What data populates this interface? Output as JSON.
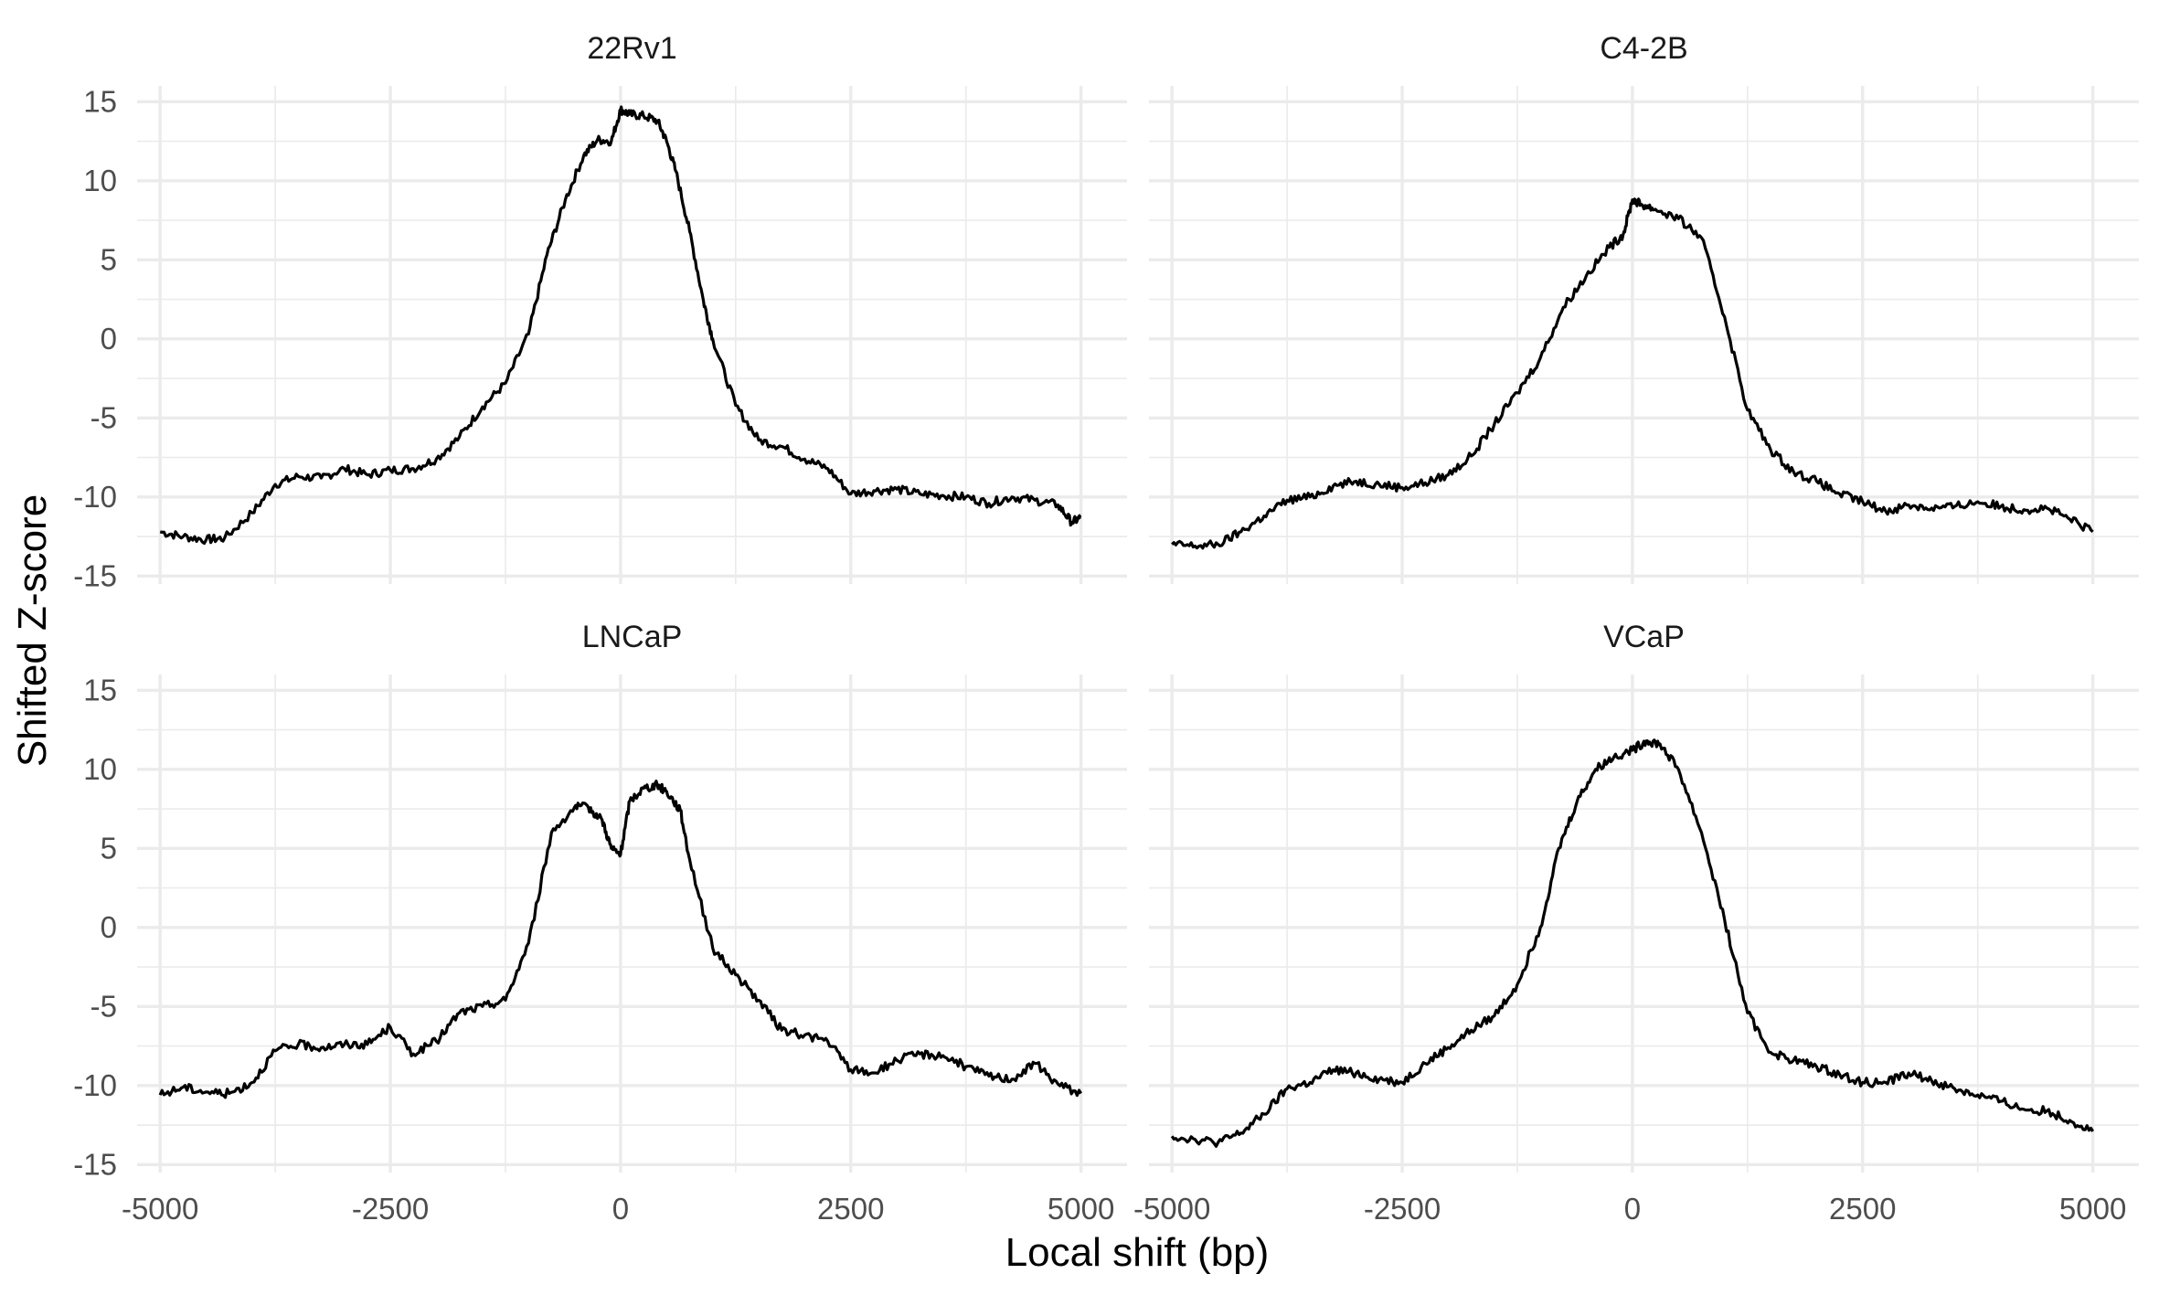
{
  "chart_data": {
    "type": "line",
    "xlabel": "Local shift (bp)",
    "ylabel": "Shifted Z-score",
    "xlim": [
      -5250,
      5500
    ],
    "ylim": [
      -15.5,
      16
    ],
    "x_ticks": [
      -5000,
      -2500,
      0,
      2500,
      5000
    ],
    "x_tick_labels": [
      "-5000",
      "-2500",
      "0",
      "2500",
      "5000"
    ],
    "y_ticks": [
      -15,
      -10,
      -5,
      0,
      5,
      10,
      15
    ],
    "y_tick_labels": [
      "-15",
      "-10",
      "-5",
      "0",
      "5",
      "10",
      "15"
    ],
    "grid": true,
    "line_color": "#000000",
    "panels": [
      {
        "title": "22Rv1",
        "x": [
          -5000,
          -4750,
          -4500,
          -4300,
          -4000,
          -3750,
          -3500,
          -3250,
          -3000,
          -2750,
          -2500,
          -2250,
          -2000,
          -1750,
          -1500,
          -1250,
          -1000,
          -800,
          -600,
          -400,
          -250,
          -100,
          0,
          100,
          250,
          400,
          500,
          600,
          750,
          900,
          1000,
          1250,
          1500,
          1750,
          2000,
          2250,
          2500,
          2750,
          3000,
          3250,
          3500,
          3750,
          4000,
          4250,
          4500,
          4750,
          4900,
          5000
        ],
        "y": [
          -12.2,
          -12.5,
          -12.7,
          -12.6,
          -11.0,
          -9.2,
          -8.7,
          -8.8,
          -8.2,
          -8.6,
          -8.3,
          -8.2,
          -7.6,
          -6.2,
          -4.3,
          -2.8,
          0.3,
          5.3,
          8.8,
          11.6,
          12.6,
          12.5,
          14.5,
          14.2,
          14.1,
          13.8,
          12.5,
          10.6,
          6.8,
          2.4,
          0.0,
          -4.2,
          -6.4,
          -6.8,
          -7.6,
          -8.2,
          -9.8,
          -9.6,
          -9.5,
          -9.8,
          -9.9,
          -10.0,
          -10.4,
          -10.0,
          -10.2,
          -10.5,
          -11.6,
          -11.3
        ]
      },
      {
        "title": "C4-2B",
        "x": [
          -5000,
          -4750,
          -4500,
          -4250,
          -4000,
          -3750,
          -3500,
          -3250,
          -3000,
          -2750,
          -2500,
          -2250,
          -2000,
          -1750,
          -1500,
          -1250,
          -1000,
          -750,
          -500,
          -250,
          -100,
          0,
          100,
          250,
          500,
          750,
          1000,
          1250,
          1500,
          1750,
          2000,
          2250,
          2500,
          2750,
          3000,
          3250,
          3500,
          3750,
          4000,
          4250,
          4500,
          4750,
          5000
        ],
        "y": [
          -13.0,
          -13.1,
          -13.0,
          -12.2,
          -11.2,
          -10.2,
          -10.0,
          -9.3,
          -9.0,
          -9.2,
          -9.4,
          -9.1,
          -8.6,
          -7.4,
          -5.4,
          -3.4,
          -1.2,
          2.0,
          4.0,
          5.8,
          6.6,
          8.8,
          8.5,
          8.2,
          7.6,
          6.4,
          1.4,
          -4.5,
          -7.0,
          -8.4,
          -9.0,
          -9.8,
          -10.3,
          -10.9,
          -10.5,
          -10.7,
          -10.6,
          -10.3,
          -10.6,
          -10.8,
          -10.7,
          -11.4,
          -12.2
        ]
      },
      {
        "title": "LNCaP",
        "x": [
          -5000,
          -4750,
          -4500,
          -4250,
          -4000,
          -3750,
          -3500,
          -3250,
          -3000,
          -2750,
          -2500,
          -2250,
          -2000,
          -1750,
          -1500,
          -1250,
          -1000,
          -750,
          -500,
          -350,
          -200,
          -100,
          0,
          100,
          250,
          400,
          500,
          650,
          750,
          1000,
          1250,
          1500,
          1750,
          2000,
          2250,
          2500,
          2750,
          3000,
          3250,
          3500,
          3750,
          4000,
          4250,
          4500,
          4750,
          5000
        ],
        "y": [
          -10.6,
          -10.1,
          -10.4,
          -10.5,
          -9.8,
          -7.8,
          -7.4,
          -7.6,
          -7.4,
          -7.4,
          -6.3,
          -8.0,
          -7.2,
          -5.4,
          -5.0,
          -4.6,
          -1.0,
          6.0,
          7.6,
          7.6,
          6.8,
          5.0,
          4.6,
          8.0,
          8.8,
          9.0,
          8.6,
          7.4,
          4.3,
          -1.3,
          -3.0,
          -4.6,
          -6.5,
          -6.8,
          -7.2,
          -9.0,
          -9.2,
          -8.4,
          -8.0,
          -8.1,
          -8.8,
          -9.4,
          -9.6,
          -8.6,
          -9.9,
          -10.5
        ]
      },
      {
        "title": "VCaP",
        "x": [
          -5000,
          -4750,
          -4500,
          -4250,
          -4000,
          -3750,
          -3500,
          -3250,
          -3000,
          -2750,
          -2500,
          -2250,
          -2000,
          -1750,
          -1500,
          -1250,
          -1000,
          -800,
          -600,
          -400,
          -200,
          0,
          150,
          300,
          500,
          750,
          1000,
          1250,
          1500,
          1750,
          2000,
          2250,
          2500,
          2750,
          3000,
          3250,
          3500,
          3750,
          4000,
          4250,
          4500,
          4750,
          5000
        ],
        "y": [
          -13.2,
          -13.4,
          -13.6,
          -13.0,
          -11.8,
          -10.2,
          -9.8,
          -9.0,
          -9.2,
          -9.6,
          -9.8,
          -8.6,
          -7.6,
          -6.5,
          -5.6,
          -3.6,
          0.0,
          5.0,
          8.0,
          10.0,
          10.8,
          11.2,
          11.8,
          11.6,
          10.0,
          6.0,
          0.5,
          -5.4,
          -7.9,
          -8.4,
          -8.8,
          -9.3,
          -9.8,
          -9.8,
          -9.2,
          -9.7,
          -10.2,
          -10.6,
          -11.0,
          -11.5,
          -11.6,
          -12.2,
          -12.9
        ]
      }
    ]
  }
}
